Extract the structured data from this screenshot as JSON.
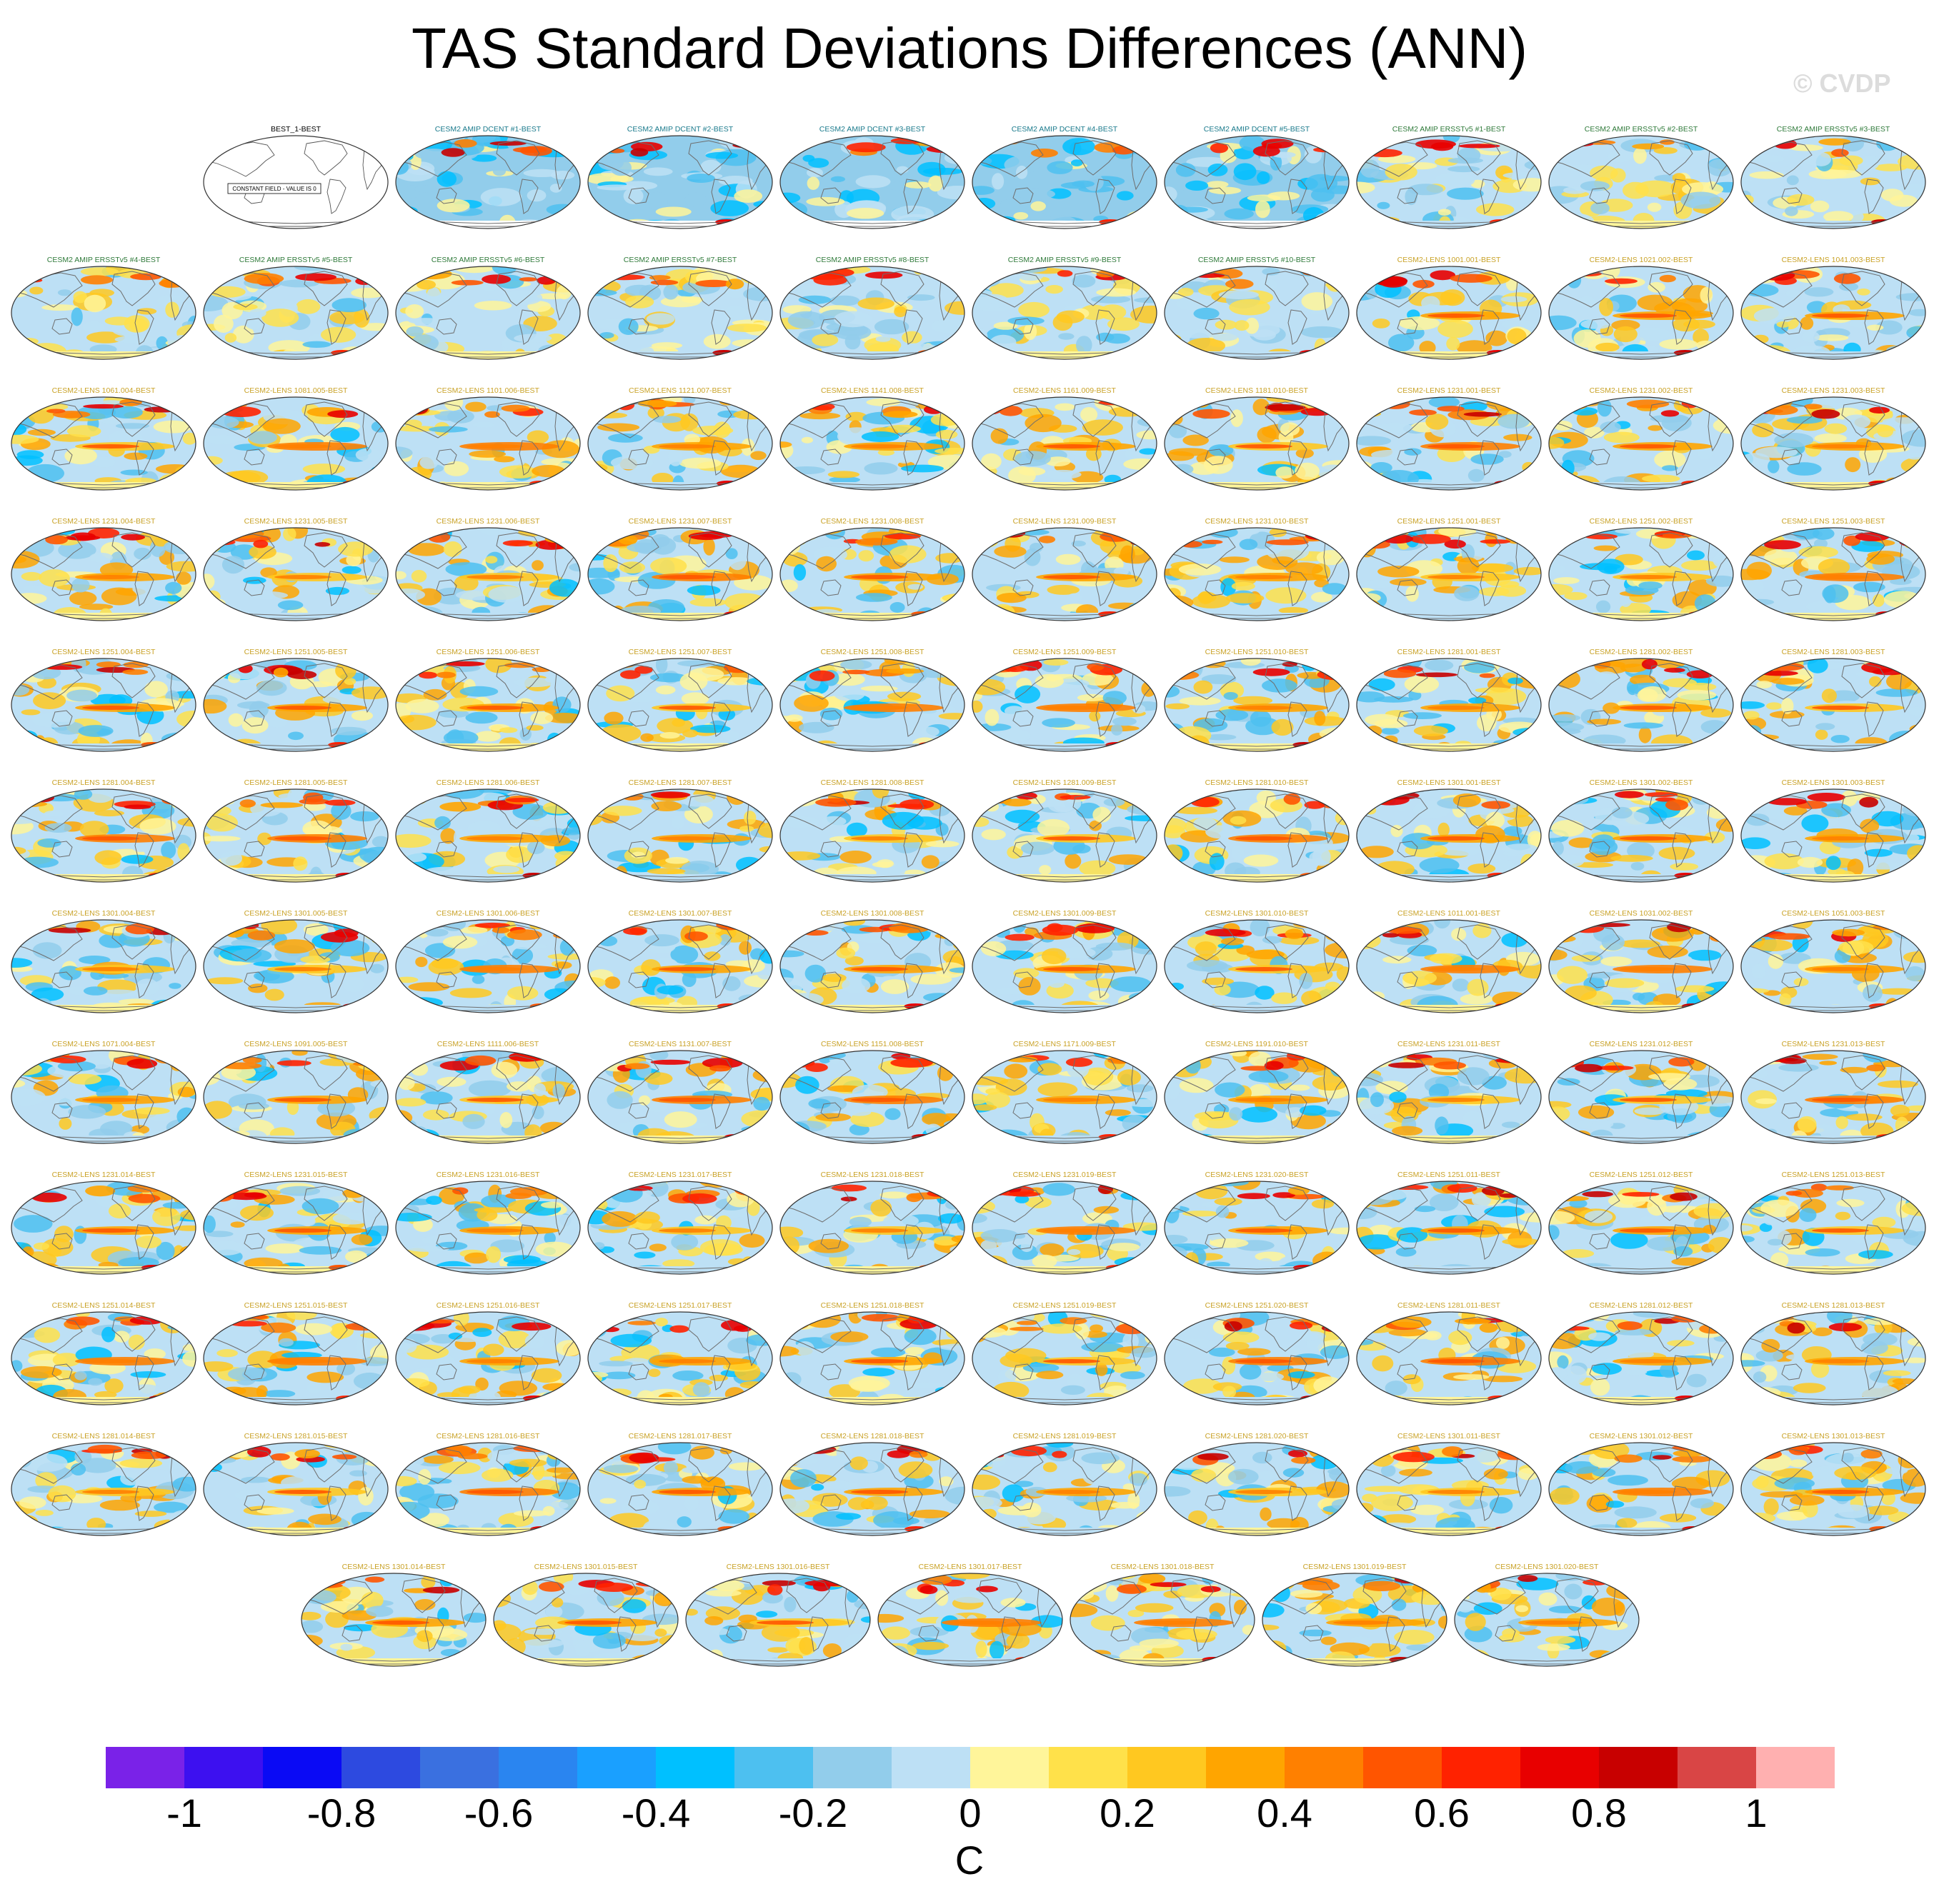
{
  "title": "TAS Standard Deviations Differences (ANN)",
  "watermark": "© CVDP",
  "chart_data": {
    "type": "heatmap",
    "title": "TAS Standard Deviations Differences (ANN)",
    "variable": "TAS",
    "season": "ANN",
    "units": "C",
    "colorbar": {
      "levels": [
        -1,
        -0.9,
        -0.8,
        -0.7,
        -0.6,
        -0.5,
        -0.4,
        -0.3,
        -0.2,
        -0.1,
        0,
        0.1,
        0.2,
        0.3,
        0.4,
        0.5,
        0.6,
        0.7,
        0.8,
        0.9,
        1
      ],
      "tick_labels": [
        "-1",
        "-0.8",
        "-0.6",
        "-0.4",
        "-0.2",
        "0",
        "0.2",
        "0.4",
        "0.6",
        "0.8",
        "1"
      ],
      "tick_values": [
        -1,
        -0.8,
        -0.6,
        -0.4,
        -0.2,
        0,
        0.2,
        0.4,
        0.6,
        0.8,
        1
      ],
      "colors": [
        "#7a22e8",
        "#3d10f0",
        "#0a0af5",
        "#2d4ae0",
        "#3a70e0",
        "#2a85f0",
        "#1aa0ff",
        "#00c0ff",
        "#4dc0f0",
        "#92cdeb",
        "#bde0f5",
        "#fff59a",
        "#ffe14a",
        "#ffc820",
        "#ffa500",
        "#ff8000",
        "#ff5500",
        "#ff2200",
        "#e80000",
        "#c80000",
        "#d94545",
        "#ffb0b0"
      ]
    },
    "reference_note": "CONSTANT FIELD - VALUE IS 0",
    "panels": [
      "BEST_1-BEST",
      "CESM2 AMIP DCENT #1-BEST",
      "CESM2 AMIP DCENT #2-BEST",
      "CESM2 AMIP DCENT #3-BEST",
      "CESM2 AMIP DCENT #4-BEST",
      "CESM2 AMIP DCENT #5-BEST",
      "CESM2 AMIP ERSSTv5 #1-BEST",
      "CESM2 AMIP ERSSTv5 #2-BEST",
      "CESM2 AMIP ERSSTv5 #3-BEST",
      "CESM2 AMIP ERSSTv5 #4-BEST",
      "CESM2 AMIP ERSSTv5 #5-BEST",
      "CESM2 AMIP ERSSTv5 #6-BEST",
      "CESM2 AMIP ERSSTv5 #7-BEST",
      "CESM2 AMIP ERSSTv5 #8-BEST",
      "CESM2 AMIP ERSSTv5 #9-BEST",
      "CESM2 AMIP ERSSTv5 #10-BEST",
      "CESM2-LENS 1001.001-BEST",
      "CESM2-LENS 1021.002-BEST",
      "CESM2-LENS 1041.003-BEST",
      "CESM2-LENS 1061.004-BEST",
      "CESM2-LENS 1081.005-BEST",
      "CESM2-LENS 1101.006-BEST",
      "CESM2-LENS 1121.007-BEST",
      "CESM2-LENS 1141.008-BEST",
      "CESM2-LENS 1161.009-BEST",
      "CESM2-LENS 1181.010-BEST",
      "CESM2-LENS 1231.001-BEST",
      "CESM2-LENS 1231.002-BEST",
      "CESM2-LENS 1231.003-BEST",
      "CESM2-LENS 1231.004-BEST",
      "CESM2-LENS 1231.005-BEST",
      "CESM2-LENS 1231.006-BEST",
      "CESM2-LENS 1231.007-BEST",
      "CESM2-LENS 1231.008-BEST",
      "CESM2-LENS 1231.009-BEST",
      "CESM2-LENS 1231.010-BEST",
      "CESM2-LENS 1251.001-BEST",
      "CESM2-LENS 1251.002-BEST",
      "CESM2-LENS 1251.003-BEST",
      "CESM2-LENS 1251.004-BEST",
      "CESM2-LENS 1251.005-BEST",
      "CESM2-LENS 1251.006-BEST",
      "CESM2-LENS 1251.007-BEST",
      "CESM2-LENS 1251.008-BEST",
      "CESM2-LENS 1251.009-BEST",
      "CESM2-LENS 1251.010-BEST",
      "CESM2-LENS 1281.001-BEST",
      "CESM2-LENS 1281.002-BEST",
      "CESM2-LENS 1281.003-BEST",
      "CESM2-LENS 1281.004-BEST",
      "CESM2-LENS 1281.005-BEST",
      "CESM2-LENS 1281.006-BEST",
      "CESM2-LENS 1281.007-BEST",
      "CESM2-LENS 1281.008-BEST",
      "CESM2-LENS 1281.009-BEST",
      "CESM2-LENS 1281.010-BEST",
      "CESM2-LENS 1301.001-BEST",
      "CESM2-LENS 1301.002-BEST",
      "CESM2-LENS 1301.003-BEST",
      "CESM2-LENS 1301.004-BEST",
      "CESM2-LENS 1301.005-BEST",
      "CESM2-LENS 1301.006-BEST",
      "CESM2-LENS 1301.007-BEST",
      "CESM2-LENS 1301.008-BEST",
      "CESM2-LENS 1301.009-BEST",
      "CESM2-LENS 1301.010-BEST",
      "CESM2-LENS 1011.001-BEST",
      "CESM2-LENS 1031.002-BEST",
      "CESM2-LENS 1051.003-BEST",
      "CESM2-LENS 1071.004-BEST",
      "CESM2-LENS 1091.005-BEST",
      "CESM2-LENS 1111.006-BEST",
      "CESM2-LENS 1131.007-BEST",
      "CESM2-LENS 1151.008-BEST",
      "CESM2-LENS 1171.009-BEST",
      "CESM2-LENS 1191.010-BEST",
      "CESM2-LENS 1231.011-BEST",
      "CESM2-LENS 1231.012-BEST",
      "CESM2-LENS 1231.013-BEST",
      "CESM2-LENS 1231.014-BEST",
      "CESM2-LENS 1231.015-BEST",
      "CESM2-LENS 1231.016-BEST",
      "CESM2-LENS 1231.017-BEST",
      "CESM2-LENS 1231.018-BEST",
      "CESM2-LENS 1231.019-BEST",
      "CESM2-LENS 1231.020-BEST",
      "CESM2-LENS 1251.011-BEST",
      "CESM2-LENS 1251.012-BEST",
      "CESM2-LENS 1251.013-BEST",
      "CESM2-LENS 1251.014-BEST",
      "CESM2-LENS 1251.015-BEST",
      "CESM2-LENS 1251.016-BEST",
      "CESM2-LENS 1251.017-BEST",
      "CESM2-LENS 1251.018-BEST",
      "CESM2-LENS 1251.019-BEST",
      "CESM2-LENS 1251.020-BEST",
      "CESM2-LENS 1281.011-BEST",
      "CESM2-LENS 1281.012-BEST",
      "CESM2-LENS 1281.013-BEST",
      "CESM2-LENS 1281.014-BEST",
      "CESM2-LENS 1281.015-BEST",
      "CESM2-LENS 1281.016-BEST",
      "CESM2-LENS 1281.017-BEST",
      "CESM2-LENS 1281.018-BEST",
      "CESM2-LENS 1281.019-BEST",
      "CESM2-LENS 1281.020-BEST",
      "CESM2-LENS 1301.011-BEST",
      "CESM2-LENS 1301.012-BEST",
      "CESM2-LENS 1301.013-BEST",
      "CESM2-LENS 1301.014-BEST",
      "CESM2-LENS 1301.015-BEST",
      "CESM2-LENS 1301.016-BEST",
      "CESM2-LENS 1301.017-BEST",
      "CESM2-LENS 1301.018-BEST",
      "CESM2-LENS 1301.019-BEST",
      "CESM2-LENS 1301.020-BEST"
    ]
  },
  "colors": {
    "title_amip_dcent": "#1a7a8c",
    "title_amip_ersst": "#2f7a3a",
    "title_lens": "#c9a227",
    "title_obs": "#000000",
    "land_line": "#6e6e6e",
    "map_outline": "#333333"
  }
}
